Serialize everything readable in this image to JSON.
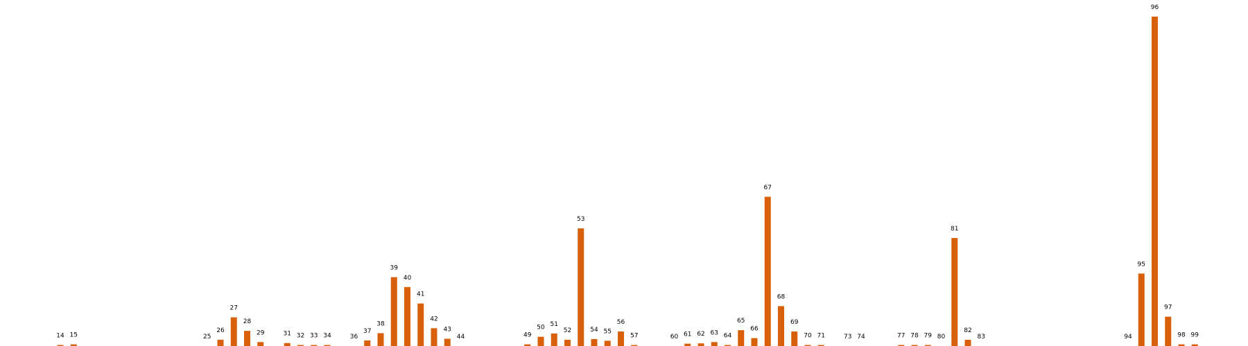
{
  "chart_data": {
    "type": "bar",
    "title": "",
    "xlabel": "",
    "ylabel": "",
    "grid": false,
    "legend": "none",
    "colors": {
      "bar": "#D9600A"
    },
    "ylim": [
      0,
      100
    ],
    "categories": [
      "14",
      "15",
      "25",
      "26",
      "27",
      "28",
      "29",
      "31",
      "32",
      "33",
      "34",
      "36",
      "37",
      "38",
      "39",
      "40",
      "41",
      "42",
      "43",
      "44",
      "49",
      "50",
      "51",
      "52",
      "53",
      "54",
      "55",
      "56",
      "57",
      "60",
      "61",
      "62",
      "63",
      "64",
      "65",
      "66",
      "67",
      "68",
      "69",
      "70",
      "71",
      "73",
      "74",
      "77",
      "78",
      "79",
      "80",
      "81",
      "82",
      "83",
      "94",
      "95",
      "96",
      "97",
      "98",
      "99"
    ],
    "values": [
      0.3,
      0.5,
      0,
      1.9,
      8.7,
      4.6,
      1.2,
      0.9,
      0.3,
      0.3,
      0.3,
      0,
      1.7,
      3.9,
      20.9,
      17.9,
      12.9,
      5.4,
      2.2,
      0,
      0.5,
      2.8,
      3.8,
      1.9,
      35.7,
      2.1,
      1.6,
      4.4,
      0.3,
      0,
      0.7,
      0.8,
      1.2,
      0.3,
      4.8,
      2.4,
      45.3,
      12.1,
      4.4,
      0.3,
      0.3,
      0,
      0,
      0.3,
      0.3,
      0.3,
      0,
      32.8,
      1.9,
      0,
      0,
      22.0,
      100,
      8.9,
      0.5,
      0.5
    ]
  }
}
